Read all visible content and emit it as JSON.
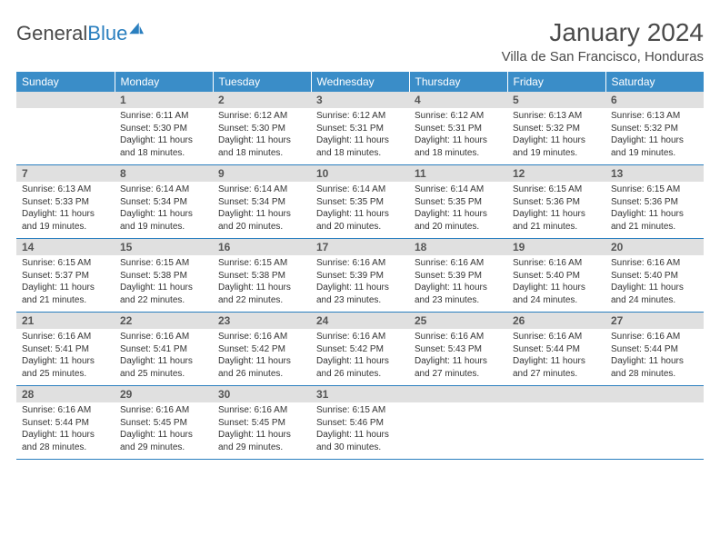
{
  "logo": {
    "word1": "General",
    "word2": "Blue"
  },
  "title": "January 2024",
  "location": "Villa de San Francisco, Honduras",
  "colors": {
    "header_bg": "#3a8dc8",
    "header_text": "#ffffff",
    "daynum_bg": "#e0e0e0",
    "border": "#2a7fbf",
    "logo_gray": "#4a4a4a",
    "logo_blue": "#2a7fbf"
  },
  "day_headers": [
    "Sunday",
    "Monday",
    "Tuesday",
    "Wednesday",
    "Thursday",
    "Friday",
    "Saturday"
  ],
  "weeks": [
    [
      {
        "n": "",
        "sr": "",
        "ss": "",
        "dl": ""
      },
      {
        "n": "1",
        "sr": "6:11 AM",
        "ss": "5:30 PM",
        "dl": "11 hours and 18 minutes."
      },
      {
        "n": "2",
        "sr": "6:12 AM",
        "ss": "5:30 PM",
        "dl": "11 hours and 18 minutes."
      },
      {
        "n": "3",
        "sr": "6:12 AM",
        "ss": "5:31 PM",
        "dl": "11 hours and 18 minutes."
      },
      {
        "n": "4",
        "sr": "6:12 AM",
        "ss": "5:31 PM",
        "dl": "11 hours and 18 minutes."
      },
      {
        "n": "5",
        "sr": "6:13 AM",
        "ss": "5:32 PM",
        "dl": "11 hours and 19 minutes."
      },
      {
        "n": "6",
        "sr": "6:13 AM",
        "ss": "5:32 PM",
        "dl": "11 hours and 19 minutes."
      }
    ],
    [
      {
        "n": "7",
        "sr": "6:13 AM",
        "ss": "5:33 PM",
        "dl": "11 hours and 19 minutes."
      },
      {
        "n": "8",
        "sr": "6:14 AM",
        "ss": "5:34 PM",
        "dl": "11 hours and 19 minutes."
      },
      {
        "n": "9",
        "sr": "6:14 AM",
        "ss": "5:34 PM",
        "dl": "11 hours and 20 minutes."
      },
      {
        "n": "10",
        "sr": "6:14 AM",
        "ss": "5:35 PM",
        "dl": "11 hours and 20 minutes."
      },
      {
        "n": "11",
        "sr": "6:14 AM",
        "ss": "5:35 PM",
        "dl": "11 hours and 20 minutes."
      },
      {
        "n": "12",
        "sr": "6:15 AM",
        "ss": "5:36 PM",
        "dl": "11 hours and 21 minutes."
      },
      {
        "n": "13",
        "sr": "6:15 AM",
        "ss": "5:36 PM",
        "dl": "11 hours and 21 minutes."
      }
    ],
    [
      {
        "n": "14",
        "sr": "6:15 AM",
        "ss": "5:37 PM",
        "dl": "11 hours and 21 minutes."
      },
      {
        "n": "15",
        "sr": "6:15 AM",
        "ss": "5:38 PM",
        "dl": "11 hours and 22 minutes."
      },
      {
        "n": "16",
        "sr": "6:15 AM",
        "ss": "5:38 PM",
        "dl": "11 hours and 22 minutes."
      },
      {
        "n": "17",
        "sr": "6:16 AM",
        "ss": "5:39 PM",
        "dl": "11 hours and 23 minutes."
      },
      {
        "n": "18",
        "sr": "6:16 AM",
        "ss": "5:39 PM",
        "dl": "11 hours and 23 minutes."
      },
      {
        "n": "19",
        "sr": "6:16 AM",
        "ss": "5:40 PM",
        "dl": "11 hours and 24 minutes."
      },
      {
        "n": "20",
        "sr": "6:16 AM",
        "ss": "5:40 PM",
        "dl": "11 hours and 24 minutes."
      }
    ],
    [
      {
        "n": "21",
        "sr": "6:16 AM",
        "ss": "5:41 PM",
        "dl": "11 hours and 25 minutes."
      },
      {
        "n": "22",
        "sr": "6:16 AM",
        "ss": "5:41 PM",
        "dl": "11 hours and 25 minutes."
      },
      {
        "n": "23",
        "sr": "6:16 AM",
        "ss": "5:42 PM",
        "dl": "11 hours and 26 minutes."
      },
      {
        "n": "24",
        "sr": "6:16 AM",
        "ss": "5:42 PM",
        "dl": "11 hours and 26 minutes."
      },
      {
        "n": "25",
        "sr": "6:16 AM",
        "ss": "5:43 PM",
        "dl": "11 hours and 27 minutes."
      },
      {
        "n": "26",
        "sr": "6:16 AM",
        "ss": "5:44 PM",
        "dl": "11 hours and 27 minutes."
      },
      {
        "n": "27",
        "sr": "6:16 AM",
        "ss": "5:44 PM",
        "dl": "11 hours and 28 minutes."
      }
    ],
    [
      {
        "n": "28",
        "sr": "6:16 AM",
        "ss": "5:44 PM",
        "dl": "11 hours and 28 minutes."
      },
      {
        "n": "29",
        "sr": "6:16 AM",
        "ss": "5:45 PM",
        "dl": "11 hours and 29 minutes."
      },
      {
        "n": "30",
        "sr": "6:16 AM",
        "ss": "5:45 PM",
        "dl": "11 hours and 29 minutes."
      },
      {
        "n": "31",
        "sr": "6:15 AM",
        "ss": "5:46 PM",
        "dl": "11 hours and 30 minutes."
      },
      {
        "n": "",
        "sr": "",
        "ss": "",
        "dl": ""
      },
      {
        "n": "",
        "sr": "",
        "ss": "",
        "dl": ""
      },
      {
        "n": "",
        "sr": "",
        "ss": "",
        "dl": ""
      }
    ]
  ],
  "labels": {
    "sunrise": "Sunrise:",
    "sunset": "Sunset:",
    "daylight": "Daylight:"
  }
}
